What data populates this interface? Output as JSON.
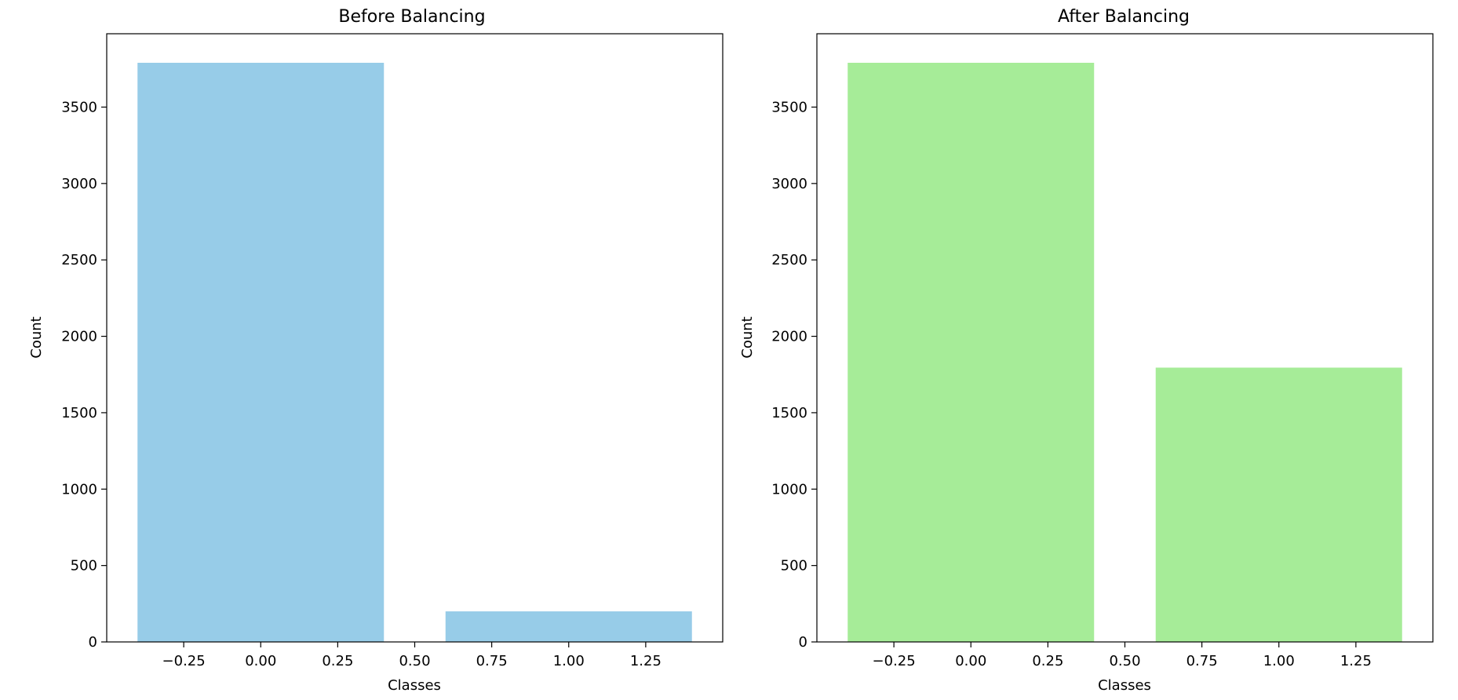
{
  "chart_data": [
    {
      "type": "bar",
      "title": "Before Balancing",
      "xlabel": "Classes",
      "ylabel": "Count",
      "x": [
        0,
        1
      ],
      "values": [
        3790,
        200
      ],
      "bar_width": 0.8,
      "xlim": [
        -0.5,
        1.5
      ],
      "ylim": [
        0,
        3980
      ],
      "xticks": [
        -0.25,
        0.0,
        0.25,
        0.5,
        0.75,
        1.0,
        1.25
      ],
      "xtick_labels": [
        "−0.25",
        "0.00",
        "0.25",
        "0.50",
        "0.75",
        "1.00",
        "1.25"
      ],
      "yticks": [
        0,
        500,
        1000,
        1500,
        2000,
        2500,
        3000,
        3500
      ],
      "ytick_labels": [
        "0",
        "500",
        "1000",
        "1500",
        "2000",
        "2500",
        "3000",
        "3500"
      ],
      "color": "#97cce8",
      "grid": false
    },
    {
      "type": "bar",
      "title": "After Balancing",
      "xlabel": "Classes",
      "ylabel": "Count",
      "x": [
        0,
        1
      ],
      "values": [
        3790,
        1795
      ],
      "bar_width": 0.8,
      "xlim": [
        -0.5,
        1.5
      ],
      "ylim": [
        0,
        3980
      ],
      "xticks": [
        -0.25,
        0.0,
        0.25,
        0.5,
        0.75,
        1.0,
        1.25
      ],
      "xtick_labels": [
        "−0.25",
        "0.00",
        "0.25",
        "0.50",
        "0.75",
        "1.00",
        "1.25"
      ],
      "yticks": [
        0,
        500,
        1000,
        1500,
        2000,
        2500,
        3000,
        3500
      ],
      "ytick_labels": [
        "0",
        "500",
        "1000",
        "1500",
        "2000",
        "2500",
        "3000",
        "3500"
      ],
      "color": "#a6ec98",
      "grid": false
    }
  ]
}
